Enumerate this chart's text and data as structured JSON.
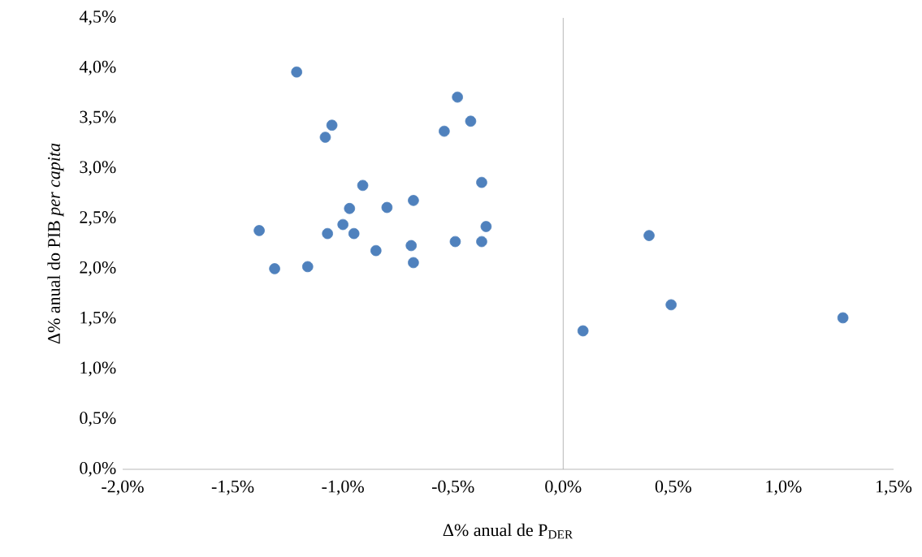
{
  "chart_data": {
    "type": "scatter",
    "xlabel": "Δ% anual de P$_{DER}$",
    "ylabel": "Δ% anual do PIB *per capita*",
    "marker": "circle",
    "xlim": [
      -2.0,
      1.5
    ],
    "ylim": [
      0.0,
      4.5
    ],
    "xticks": [
      {
        "value": -2.0,
        "label": "-2,0%"
      },
      {
        "value": -1.5,
        "label": "-1,5%"
      },
      {
        "value": -1.0,
        "label": "-1,0%"
      },
      {
        "value": -0.5,
        "label": "-0,5%"
      },
      {
        "value": 0.0,
        "label": "0,0%"
      },
      {
        "value": 0.5,
        "label": "0,5%"
      },
      {
        "value": 1.0,
        "label": "1,0%"
      },
      {
        "value": 1.5,
        "label": "1,5%"
      }
    ],
    "yticks": [
      {
        "value": 0.0,
        "label": "0,0%"
      },
      {
        "value": 0.5,
        "label": "0,5%"
      },
      {
        "value": 1.0,
        "label": "1,0%"
      },
      {
        "value": 1.5,
        "label": "1,5%"
      },
      {
        "value": 2.0,
        "label": "2,0%"
      },
      {
        "value": 2.5,
        "label": "2,5%"
      },
      {
        "value": 3.0,
        "label": "3,0%"
      },
      {
        "value": 3.5,
        "label": "3,5%"
      },
      {
        "value": 4.0,
        "label": "4,0%"
      },
      {
        "value": 4.5,
        "label": "4,5%"
      }
    ],
    "series": [
      {
        "color": "#4f81bd",
        "x": [
          -1.21,
          -0.48,
          -0.42,
          -1.05,
          -0.54,
          -1.08,
          -0.91,
          -0.37,
          -0.68,
          -0.8,
          -0.97,
          -1.38,
          -1.0,
          -0.35,
          -1.07,
          -0.95,
          0.39,
          -0.49,
          -0.37,
          -0.69,
          -0.85,
          -0.68,
          -1.31,
          -1.16,
          0.49,
          1.27,
          0.09
        ],
        "values": [
          3.96,
          3.71,
          3.47,
          3.43,
          3.37,
          3.31,
          2.83,
          2.86,
          2.68,
          2.61,
          2.6,
          2.38,
          2.44,
          2.42,
          2.35,
          2.35,
          2.33,
          2.27,
          2.27,
          2.23,
          2.18,
          2.06,
          2.0,
          2.02,
          1.64,
          1.51,
          1.38
        ]
      }
    ]
  }
}
